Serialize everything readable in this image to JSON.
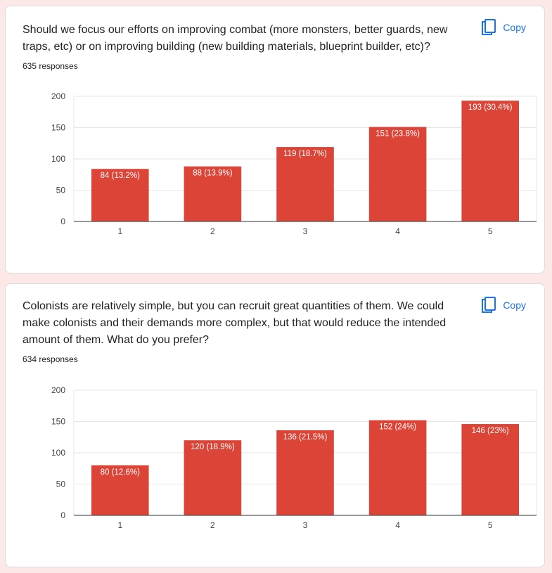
{
  "colors": {
    "bar": "#db4437",
    "accent": "#1a73e8",
    "grid": "#e6e6e6",
    "axis": "#333333",
    "background": "#fce8e6"
  },
  "copy_icon": "copy-icon",
  "questions": [
    {
      "text": "Should we focus our efforts on improving combat (more monsters, better guards, new traps, etc) or on improving building (new building materials, blueprint builder, etc)?",
      "responses": "635 responses",
      "copy_label": "Copy"
    },
    {
      "text": "Colonists are relatively simple, but you can recruit great quantities of them. We could make colonists and their demands more complex, but that would reduce the intended amount of them. What do you prefer?",
      "responses": "634 responses",
      "copy_label": "Copy"
    }
  ],
  "chart_data": [
    {
      "type": "bar",
      "categories": [
        "1",
        "2",
        "3",
        "4",
        "5"
      ],
      "values": [
        84,
        88,
        119,
        151,
        193
      ],
      "data_labels": [
        "84 (13.2%)",
        "88 (13.9%)",
        "119 (18.7%)",
        "151 (23.8%)",
        "193 (30.4%)"
      ],
      "ylim": [
        0,
        200
      ],
      "yticks": [
        0,
        50,
        100,
        150,
        200
      ],
      "grid": true,
      "legend": "none"
    },
    {
      "type": "bar",
      "categories": [
        "1",
        "2",
        "3",
        "4",
        "5"
      ],
      "values": [
        80,
        120,
        136,
        152,
        146
      ],
      "data_labels": [
        "80 (12.6%)",
        "120 (18.9%)",
        "136 (21.5%)",
        "152 (24%)",
        "146 (23%)"
      ],
      "ylim": [
        0,
        200
      ],
      "yticks": [
        0,
        50,
        100,
        150,
        200
      ],
      "grid": true,
      "legend": "none"
    }
  ]
}
